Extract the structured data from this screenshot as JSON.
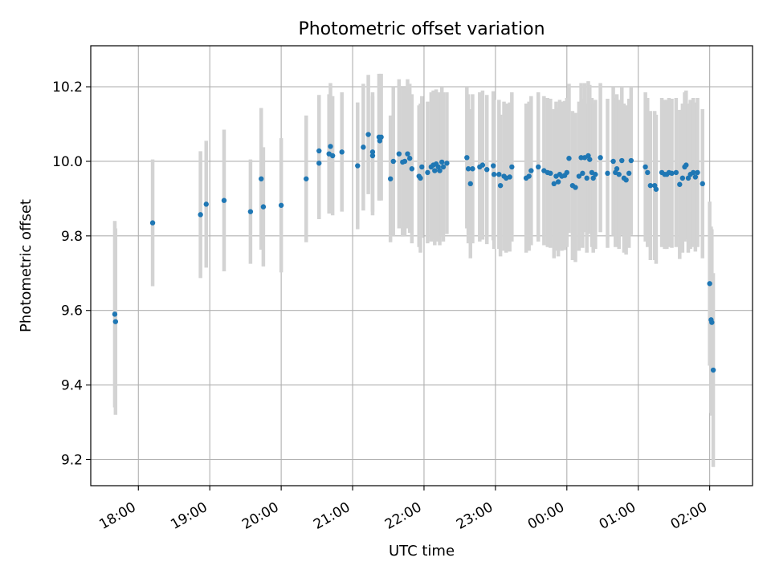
{
  "chart_data": {
    "type": "scatter",
    "title": "Photometric offset variation",
    "xlabel": "UTC time",
    "ylabel": "Photometric offset",
    "x_unit": "hours since 17:00 UTC",
    "xlim": [
      0.3333,
      9.6
    ],
    "ylim": [
      9.13,
      10.31
    ],
    "grid": true,
    "legend": "none",
    "x_ticks": [
      {
        "value": 1,
        "label": "18:00"
      },
      {
        "value": 2,
        "label": "19:00"
      },
      {
        "value": 3,
        "label": "20:00"
      },
      {
        "value": 4,
        "label": "21:00"
      },
      {
        "value": 5,
        "label": "22:00"
      },
      {
        "value": 6,
        "label": "23:00"
      },
      {
        "value": 7,
        "label": "00:00"
      },
      {
        "value": 8,
        "label": "01:00"
      },
      {
        "value": 9,
        "label": "02:00"
      }
    ],
    "y_ticks": [
      {
        "value": 9.2,
        "label": "9.2"
      },
      {
        "value": 9.4,
        "label": "9.4"
      },
      {
        "value": 9.6,
        "label": "9.6"
      },
      {
        "value": 9.8,
        "label": "9.8"
      },
      {
        "value": 10.0,
        "label": "10.0"
      },
      {
        "value": 10.2,
        "label": "10.2"
      }
    ],
    "colors": {
      "points": "#1f77b4",
      "errorbars": "#d3d3d3",
      "grid": "#b0b0b0"
    },
    "points": [
      [
        0.67,
        9.59,
        0.25
      ],
      [
        0.68,
        9.57,
        0.25
      ],
      [
        1.2,
        9.835,
        0.17
      ],
      [
        1.87,
        9.857,
        0.17
      ],
      [
        1.95,
        9.885,
        0.17
      ],
      [
        2.2,
        9.895,
        0.19
      ],
      [
        2.57,
        9.865,
        0.14
      ],
      [
        2.72,
        9.953,
        0.19
      ],
      [
        2.75,
        9.878,
        0.16
      ],
      [
        3.0,
        9.882,
        0.18
      ],
      [
        3.35,
        9.953,
        0.17
      ],
      [
        3.53,
        10.028,
        0.15
      ],
      [
        3.53,
        9.995,
        0.15
      ],
      [
        3.67,
        10.02,
        0.16
      ],
      [
        3.69,
        10.04,
        0.17
      ],
      [
        3.72,
        10.015,
        0.16
      ],
      [
        3.85,
        10.025,
        0.16
      ],
      [
        4.07,
        9.988,
        0.17
      ],
      [
        4.15,
        10.038,
        0.17
      ],
      [
        4.22,
        10.072,
        0.16
      ],
      [
        4.28,
        10.015,
        0.16
      ],
      [
        4.28,
        10.025,
        0.16
      ],
      [
        4.37,
        10.065,
        0.17
      ],
      [
        4.38,
        10.055,
        0.16
      ],
      [
        4.4,
        10.065,
        0.17
      ],
      [
        4.53,
        9.953,
        0.17
      ],
      [
        4.57,
        10.0,
        0.2
      ],
      [
        4.65,
        10.02,
        0.2
      ],
      [
        4.7,
        9.998,
        0.2
      ],
      [
        4.73,
        10.0,
        0.2
      ],
      [
        4.77,
        10.02,
        0.2
      ],
      [
        4.8,
        10.008,
        0.2
      ],
      [
        4.83,
        9.98,
        0.2
      ],
      [
        4.93,
        9.96,
        0.19
      ],
      [
        4.95,
        9.955,
        0.2
      ],
      [
        4.97,
        9.985,
        0.19
      ],
      [
        5.05,
        9.97,
        0.19
      ],
      [
        5.1,
        9.985,
        0.2
      ],
      [
        5.13,
        9.99,
        0.2
      ],
      [
        5.15,
        9.975,
        0.2
      ],
      [
        5.17,
        9.993,
        0.2
      ],
      [
        5.2,
        9.985,
        0.2
      ],
      [
        5.22,
        9.975,
        0.2
      ],
      [
        5.25,
        9.998,
        0.2
      ],
      [
        5.27,
        9.985,
        0.2
      ],
      [
        5.32,
        9.995,
        0.19
      ],
      [
        5.6,
        10.01,
        0.19
      ],
      [
        5.62,
        9.98,
        0.2
      ],
      [
        5.65,
        9.94,
        0.2
      ],
      [
        5.68,
        9.98,
        0.2
      ],
      [
        5.78,
        9.985,
        0.2
      ],
      [
        5.82,
        9.99,
        0.2
      ],
      [
        5.88,
        9.978,
        0.2
      ],
      [
        5.97,
        9.988,
        0.2
      ],
      [
        5.98,
        9.965,
        0.2
      ],
      [
        6.05,
        9.965,
        0.2
      ],
      [
        6.07,
        9.935,
        0.19
      ],
      [
        6.12,
        9.96,
        0.2
      ],
      [
        6.15,
        9.955,
        0.2
      ],
      [
        6.2,
        9.958,
        0.2
      ],
      [
        6.23,
        9.985,
        0.2
      ],
      [
        6.43,
        9.955,
        0.2
      ],
      [
        6.47,
        9.96,
        0.2
      ],
      [
        6.5,
        9.975,
        0.2
      ],
      [
        6.6,
        9.985,
        0.2
      ],
      [
        6.68,
        9.975,
        0.2
      ],
      [
        6.73,
        9.97,
        0.2
      ],
      [
        6.77,
        9.968,
        0.2
      ],
      [
        6.82,
        9.94,
        0.2
      ],
      [
        6.85,
        9.96,
        0.2
      ],
      [
        6.88,
        9.945,
        0.2
      ],
      [
        6.9,
        9.965,
        0.2
      ],
      [
        6.93,
        9.96,
        0.2
      ],
      [
        6.97,
        9.962,
        0.2
      ],
      [
        7.0,
        9.97,
        0.2
      ],
      [
        7.03,
        10.008,
        0.2
      ],
      [
        7.08,
        9.935,
        0.2
      ],
      [
        7.12,
        9.93,
        0.2
      ],
      [
        7.17,
        9.96,
        0.2
      ],
      [
        7.2,
        10.01,
        0.2
      ],
      [
        7.22,
        9.968,
        0.2
      ],
      [
        7.25,
        10.01,
        0.2
      ],
      [
        7.28,
        9.955,
        0.2
      ],
      [
        7.3,
        10.015,
        0.2
      ],
      [
        7.32,
        10.005,
        0.2
      ],
      [
        7.35,
        9.97,
        0.2
      ],
      [
        7.37,
        9.955,
        0.2
      ],
      [
        7.4,
        9.965,
        0.2
      ],
      [
        7.47,
        10.01,
        0.2
      ],
      [
        7.57,
        9.968,
        0.2
      ],
      [
        7.65,
        10.0,
        0.2
      ],
      [
        7.68,
        9.97,
        0.2
      ],
      [
        7.7,
        9.98,
        0.2
      ],
      [
        7.73,
        9.965,
        0.2
      ],
      [
        7.77,
        10.002,
        0.2
      ],
      [
        7.8,
        9.955,
        0.2
      ],
      [
        7.83,
        9.95,
        0.2
      ],
      [
        7.87,
        9.968,
        0.2
      ],
      [
        7.9,
        10.002,
        0.2
      ],
      [
        8.1,
        9.985,
        0.2
      ],
      [
        8.13,
        9.97,
        0.2
      ],
      [
        8.17,
        9.935,
        0.2
      ],
      [
        8.23,
        9.935,
        0.2
      ],
      [
        8.25,
        9.925,
        0.2
      ],
      [
        8.33,
        9.97,
        0.2
      ],
      [
        8.37,
        9.965,
        0.2
      ],
      [
        8.4,
        9.965,
        0.2
      ],
      [
        8.43,
        9.97,
        0.2
      ],
      [
        8.47,
        9.968,
        0.2
      ],
      [
        8.53,
        9.97,
        0.2
      ],
      [
        8.58,
        9.938,
        0.2
      ],
      [
        8.62,
        9.955,
        0.2
      ],
      [
        8.65,
        9.985,
        0.2
      ],
      [
        8.67,
        9.99,
        0.2
      ],
      [
        8.7,
        9.955,
        0.2
      ],
      [
        8.73,
        9.965,
        0.2
      ],
      [
        8.77,
        9.97,
        0.2
      ],
      [
        8.8,
        9.958,
        0.2
      ],
      [
        8.83,
        9.97,
        0.2
      ],
      [
        8.9,
        9.94,
        0.2
      ],
      [
        9.0,
        9.672,
        0.22
      ],
      [
        9.02,
        9.575,
        0.25
      ],
      [
        9.03,
        9.568,
        0.25
      ],
      [
        9.05,
        9.44,
        0.26
      ]
    ]
  }
}
